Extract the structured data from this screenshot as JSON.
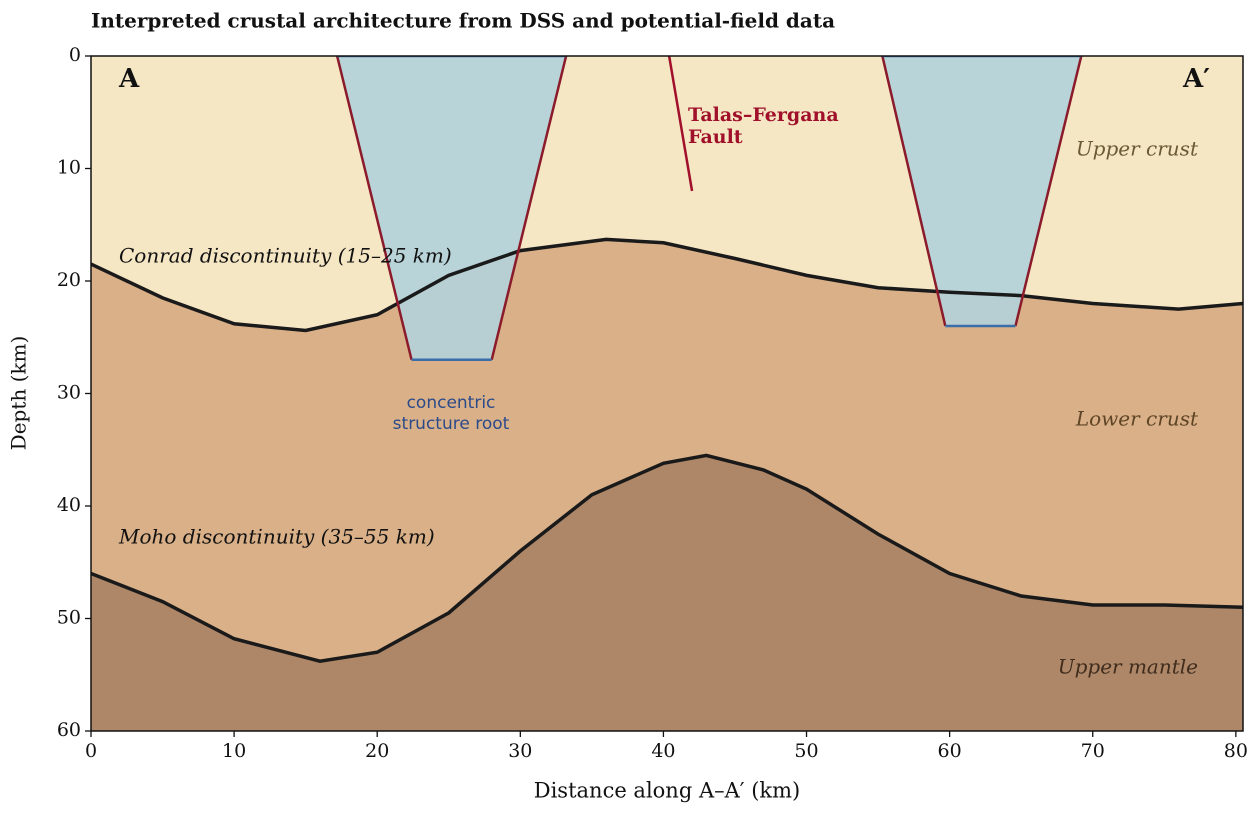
{
  "chart_data": {
    "type": "cross-section",
    "title": "Interpreted crustal architecture from DSS and potential-field data",
    "x_label": "Distance along A–A′ (km)",
    "y_label": "Depth (km)",
    "xlim": [
      0,
      80.5
    ],
    "ylim": [
      0,
      60
    ],
    "xticks": [
      0,
      10,
      20,
      30,
      40,
      50,
      60,
      70,
      80
    ],
    "yticks": [
      0,
      10,
      20,
      30,
      40,
      50,
      60
    ],
    "y_inverted": true,
    "layers": [
      {
        "name": "Upper crust",
        "color": "#f5e6c4",
        "label_color": "#6b5a33"
      },
      {
        "name": "Lower crust",
        "color": "#d9b088",
        "label_color": "#5e4526"
      },
      {
        "name": "Upper mantle",
        "color": "#ae8768",
        "label_color": "#3f2c1c"
      }
    ],
    "series": [
      {
        "name": "Conrad discontinuity (15–25 km)",
        "color": "#1a1a1a",
        "x": [
          0,
          5,
          10,
          15,
          20,
          25,
          30,
          36,
          40,
          45,
          50,
          55,
          60,
          65,
          70,
          76,
          80.5
        ],
        "values": [
          18.5,
          21.5,
          23.8,
          24.4,
          23,
          19.5,
          17.3,
          16.3,
          16.6,
          18,
          19.5,
          20.6,
          21,
          21.3,
          22,
          22.5,
          22
        ]
      },
      {
        "name": "Moho discontinuity (35–55 km)",
        "color": "#1a1a1a",
        "x": [
          0,
          5,
          10,
          16,
          20,
          25,
          30,
          35,
          40,
          43,
          47,
          50,
          55,
          60,
          65,
          70,
          75,
          80.5
        ],
        "values": [
          46,
          48.5,
          51.8,
          53.8,
          53,
          49.5,
          44,
          39,
          36.2,
          35.5,
          36.8,
          38.5,
          42.5,
          46,
          48,
          48.8,
          48.8,
          49
        ]
      }
    ],
    "structures": [
      {
        "x": [
          17.2,
          33.2,
          28,
          22.4
        ],
        "y": [
          0,
          0,
          27,
          27
        ]
      },
      {
        "x": [
          55.3,
          69.2,
          64.6,
          59.7
        ],
        "y": [
          0,
          0,
          24,
          24
        ]
      }
    ],
    "structure_color": "#b3d1da",
    "structure_edge_color": "#8b1a2b",
    "structure_base_color": "#3b6ea8",
    "structure_label": [
      "concentric",
      "structure root"
    ],
    "structure_label_color": "#2b4a8a",
    "fault": {
      "name": [
        "Talas–Fergana",
        "Fault"
      ],
      "x": [
        40.4,
        42
      ],
      "y": [
        0,
        12
      ],
      "color": "#a0102a"
    },
    "profile_ends": [
      "A",
      "A′"
    ]
  }
}
